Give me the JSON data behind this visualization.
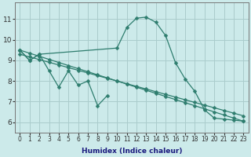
{
  "xlabel": "Humidex (Indice chaleur)",
  "background_color": "#cceaea",
  "grid_color": "#aacccc",
  "line_color": "#2e7d6e",
  "xlim": [
    -0.5,
    23.5
  ],
  "ylim": [
    5.5,
    11.8
  ],
  "yticks": [
    6,
    7,
    8,
    9,
    10,
    11
  ],
  "xticks": [
    0,
    1,
    2,
    3,
    4,
    5,
    6,
    7,
    8,
    9,
    10,
    11,
    12,
    13,
    14,
    15,
    16,
    17,
    18,
    19,
    20,
    21,
    22,
    23
  ],
  "line_zigzag_x": [
    0,
    1,
    2,
    3,
    4,
    5,
    6,
    7,
    8,
    9
  ],
  "line_zigzag_y": [
    9.5,
    9.0,
    9.3,
    8.5,
    7.7,
    8.5,
    7.8,
    8.0,
    6.8,
    7.3
  ],
  "line_straight1_x": [
    0,
    1,
    2,
    3,
    4,
    5,
    6,
    7,
    8,
    9,
    10,
    11,
    12,
    13,
    14,
    15,
    16,
    17,
    18,
    19,
    20,
    21,
    22,
    23
  ],
  "line_straight1_y": [
    9.5,
    9.35,
    9.2,
    9.05,
    8.9,
    8.75,
    8.6,
    8.45,
    8.3,
    8.15,
    8.0,
    7.85,
    7.7,
    7.55,
    7.4,
    7.25,
    7.1,
    6.95,
    6.8,
    6.65,
    6.5,
    6.35,
    6.2,
    6.05
  ],
  "line_straight2_x": [
    0,
    1,
    2,
    3,
    4,
    5,
    6,
    7,
    8,
    9,
    10,
    11,
    12,
    13,
    14,
    15,
    16,
    17,
    18,
    19,
    20,
    21,
    22,
    23
  ],
  "line_straight2_y": [
    9.3,
    9.17,
    9.04,
    8.91,
    8.78,
    8.65,
    8.52,
    8.39,
    8.26,
    8.13,
    8.0,
    7.87,
    7.74,
    7.61,
    7.48,
    7.35,
    7.22,
    7.09,
    6.96,
    6.83,
    6.7,
    6.57,
    6.44,
    6.31
  ],
  "line_bell_x": [
    0,
    1,
    2,
    10,
    11,
    12,
    13,
    14,
    15,
    16,
    17,
    18,
    19,
    20,
    21,
    22,
    23
  ],
  "line_bell_y": [
    9.5,
    9.0,
    9.3,
    9.6,
    10.6,
    11.05,
    11.1,
    10.85,
    10.2,
    8.9,
    8.1,
    7.5,
    6.6,
    6.2,
    6.15,
    6.1,
    6.05
  ],
  "xlabel_color": "#1a1a7e",
  "xlabel_fontsize": 6.5,
  "tick_fontsize": 5.5,
  "ytick_fontsize": 6.5,
  "line_width": 0.9,
  "marker_size": 2.5
}
